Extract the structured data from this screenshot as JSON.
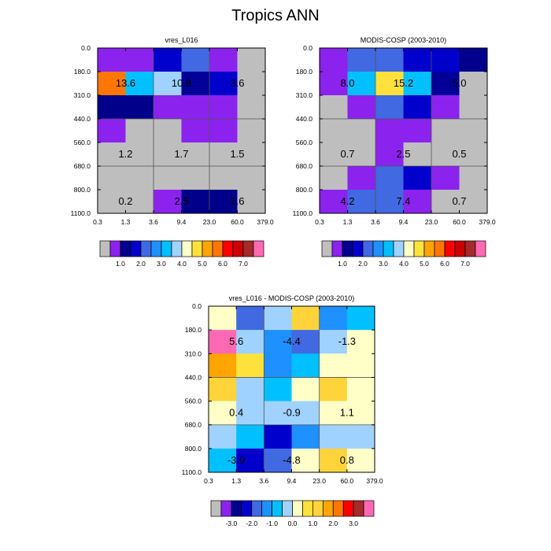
{
  "title": "Tropics ANN",
  "x_ticks": [
    "0.3",
    "1.3",
    "3.6",
    "9.4",
    "23.0",
    "60.0",
    "379.0"
  ],
  "y_ticks": [
    "0.0",
    "180.0",
    "310.0",
    "440.0",
    "560.0",
    "680.0",
    "800.0",
    "1100.0"
  ],
  "chart_data": [
    {
      "type": "heatmap",
      "title": "vres_L016",
      "x_ticks_label": "x_ticks",
      "grid": [
        [
          "#8b22ee",
          "#8b22ee",
          "#0000cc",
          "#4169e1",
          "#8b22ee",
          "#bebebe"
        ],
        [
          "#ff7700",
          "#00c0ff",
          "#a0d2ff",
          "#000099",
          "#0000cc",
          "#bebebe"
        ],
        [
          "#00008b",
          "#00008b",
          "#8b22ee",
          "#8b22ee",
          "#8b22ee",
          "#bebebe"
        ],
        [
          "#8b22ee",
          "#bebebe",
          "#bebebe",
          "#8b22ee",
          "#8b22ee",
          "#bebebe"
        ],
        [
          "#bebebe",
          "#bebebe",
          "#bebebe",
          "#bebebe",
          "#bebebe",
          "#bebebe"
        ],
        [
          "#bebebe",
          "#bebebe",
          "#bebebe",
          "#bebebe",
          "#bebebe",
          "#bebebe"
        ],
        [
          "#bebebe",
          "#bebebe",
          "#8b22ee",
          "#00008b",
          "#00008b",
          "#bebebe"
        ]
      ],
      "labels": [
        {
          "text": "13.6",
          "col": 1,
          "row": 1
        },
        {
          "text": "10.8",
          "col": 3,
          "row": 1
        },
        {
          "text": "3.6",
          "col": 5,
          "row": 1
        },
        {
          "text": "1.2",
          "col": 1,
          "row": 4
        },
        {
          "text": "1.7",
          "col": 3,
          "row": 4
        },
        {
          "text": "1.5",
          "col": 5,
          "row": 4
        },
        {
          "text": "0.2",
          "col": 1,
          "row": 6
        },
        {
          "text": "2.5",
          "col": 3,
          "row": 6
        },
        {
          "text": "1.6",
          "col": 5,
          "row": 6
        }
      ],
      "colorbar": {
        "colors": [
          "#bebebe",
          "#8b22ee",
          "#00008b",
          "#0000cc",
          "#4169e1",
          "#1e90ff",
          "#00c0ff",
          "#a0d2ff",
          "#ffffc8",
          "#ffe13c",
          "#ffa500",
          "#ff7700",
          "#ff0000",
          "#cd0000",
          "#a52a2a",
          "#ff69b4"
        ],
        "labels": [
          "1.0",
          "2.0",
          "3.0",
          "4.0",
          "5.0",
          "6.0",
          "7.0"
        ]
      }
    },
    {
      "type": "heatmap",
      "title": "MODIS-COSP (2003-2010)",
      "grid": [
        [
          "#8b22ee",
          "#4169e1",
          "#4169e1",
          "#0000cc",
          "#0000cc",
          "#00008b"
        ],
        [
          "#8b22ee",
          "#00c0ff",
          "#ffe13c",
          "#00c0ff",
          "#000099",
          "#bebebe"
        ],
        [
          "#bebebe",
          "#8b22ee",
          "#4169e1",
          "#0000cc",
          "#8b22ee",
          "#bebebe"
        ],
        [
          "#bebebe",
          "#bebebe",
          "#8b22ee",
          "#8b22ee",
          "#bebebe",
          "#bebebe"
        ],
        [
          "#bebebe",
          "#bebebe",
          "#8b22ee",
          "#bebebe",
          "#bebebe",
          "#bebebe"
        ],
        [
          "#bebebe",
          "#8b22ee",
          "#4169e1",
          "#0000cc",
          "#8b22ee",
          "#bebebe"
        ],
        [
          "#8b22ee",
          "#4169e1",
          "#4169e1",
          "#8b22ee",
          "#bebebe",
          "#bebebe"
        ]
      ],
      "labels": [
        {
          "text": "8.0",
          "col": 1,
          "row": 1
        },
        {
          "text": "15.2",
          "col": 3,
          "row": 1
        },
        {
          "text": "5.0",
          "col": 5,
          "row": 1
        },
        {
          "text": "0.7",
          "col": 1,
          "row": 4
        },
        {
          "text": "2.5",
          "col": 3,
          "row": 4
        },
        {
          "text": "0.5",
          "col": 5,
          "row": 4
        },
        {
          "text": "4.2",
          "col": 1,
          "row": 6
        },
        {
          "text": "7.4",
          "col": 3,
          "row": 6
        },
        {
          "text": "0.7",
          "col": 5,
          "row": 6
        }
      ],
      "colorbar": {
        "colors": [
          "#bebebe",
          "#8b22ee",
          "#00008b",
          "#0000cc",
          "#4169e1",
          "#1e90ff",
          "#00c0ff",
          "#a0d2ff",
          "#ffffc8",
          "#ffe13c",
          "#ffa500",
          "#ff7700",
          "#ff0000",
          "#cd0000",
          "#a52a2a",
          "#ff69b4"
        ],
        "labels": [
          "1.0",
          "2.0",
          "3.0",
          "4.0",
          "5.0",
          "6.0",
          "7.0"
        ]
      }
    },
    {
      "type": "heatmap",
      "title": "vres_L016 - MODIS-COSP (2003-2010)",
      "grid": [
        [
          "#ffffc8",
          "#4169e1",
          "#a0d2ff",
          "#ffd43b",
          "#1e90ff",
          "#00c0ff"
        ],
        [
          "#ff69b4",
          "#a0d2ff",
          "#1e90ff",
          "#4169e1",
          "#a0d2ff",
          "#ffffc8"
        ],
        [
          "#ffa500",
          "#ffe13c",
          "#1e90ff",
          "#00c0ff",
          "#ffffc8",
          "#ffffc8"
        ],
        [
          "#ffd43b",
          "#a0d2ff",
          "#00c0ff",
          "#ffffc8",
          "#ffd43b",
          "#ffffc8"
        ],
        [
          "#ffffc8",
          "#a0d2ff",
          "#a0d2ff",
          "#a0d2ff",
          "#ffffc8",
          "#ffffc8"
        ],
        [
          "#a0d2ff",
          "#00c0ff",
          "#0000cc",
          "#1e90ff",
          "#a0d2ff",
          "#a0d2ff"
        ],
        [
          "#00c0ff",
          "#0000cc",
          "#4169e1",
          "#ffffc8",
          "#ffd43b",
          "#ffffc8"
        ]
      ],
      "labels": [
        {
          "text": "5.6",
          "col": 1,
          "row": 1
        },
        {
          "text": "-4.4",
          "col": 3,
          "row": 1
        },
        {
          "text": "-1.3",
          "col": 5,
          "row": 1
        },
        {
          "text": "0.4",
          "col": 1,
          "row": 4
        },
        {
          "text": "-0.9",
          "col": 3,
          "row": 4
        },
        {
          "text": "1.1",
          "col": 5,
          "row": 4
        },
        {
          "text": "-3.9",
          "col": 1,
          "row": 6
        },
        {
          "text": "-4.8",
          "col": 3,
          "row": 6
        },
        {
          "text": "0.8",
          "col": 5,
          "row": 6
        }
      ],
      "colorbar": {
        "colors": [
          "#bebebe",
          "#8b22ee",
          "#00008b",
          "#0000cc",
          "#4169e1",
          "#1e90ff",
          "#00c0ff",
          "#a0d2ff",
          "#ffffc8",
          "#ffe13c",
          "#ffd43b",
          "#ffa500",
          "#ff7700",
          "#ff0000",
          "#a52a2a",
          "#ff69b4"
        ],
        "labels": [
          "-3.0",
          "-2.0",
          "-1.0",
          "0.0",
          "1.0",
          "2.0",
          "3.0"
        ]
      }
    }
  ]
}
